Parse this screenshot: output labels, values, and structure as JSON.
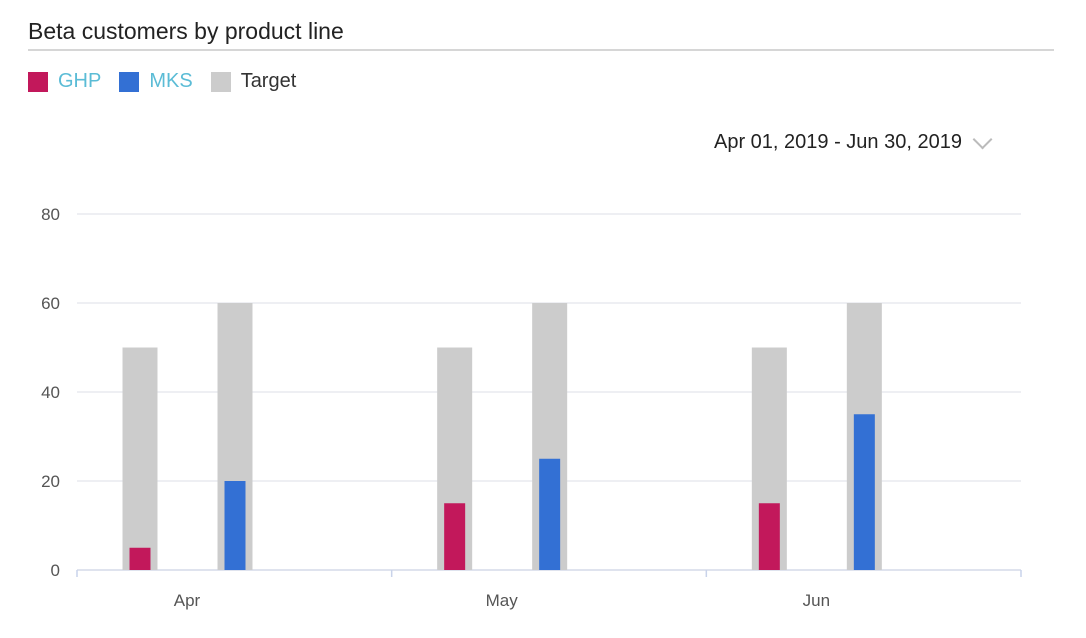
{
  "chart_data": {
    "type": "bar",
    "title": "Beta customers by product line",
    "categories": [
      "Apr",
      "May",
      "Jun"
    ],
    "series": [
      {
        "name": "GHP",
        "values": [
          5,
          15,
          15
        ],
        "target": [
          50,
          50,
          50
        ],
        "color": "#c2185b",
        "label_color": "#5bbcd6"
      },
      {
        "name": "MKS",
        "values": [
          20,
          25,
          35
        ],
        "target": [
          60,
          60,
          60
        ],
        "color": "#3370d4",
        "label_color": "#5bbcd6"
      }
    ],
    "target_legend": {
      "name": "Target",
      "color": "#cccccc",
      "label_color": "#333333"
    },
    "ylim": [
      0,
      80
    ],
    "yticks": [
      0,
      20,
      40,
      60,
      80
    ],
    "grid": true,
    "legend_position": "top-left"
  },
  "date_range": "Apr 01, 2019 - Jun 30, 2019"
}
